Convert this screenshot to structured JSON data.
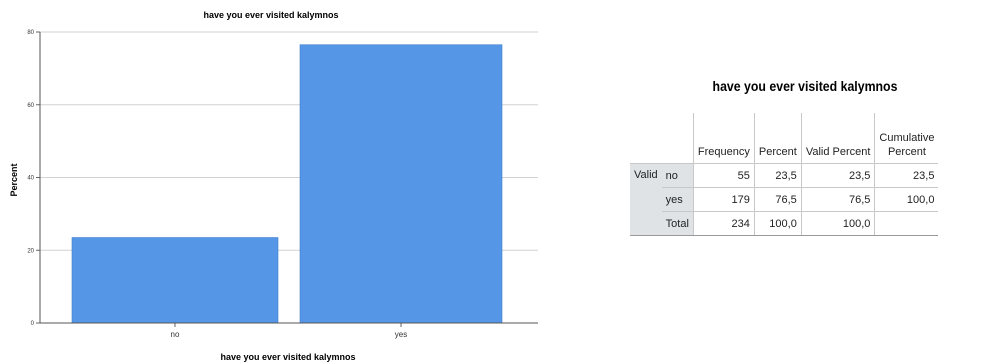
{
  "chart_data": {
    "type": "bar",
    "title": "have you ever visited kalymnos",
    "xlabel": "have you ever visited kalymnos",
    "ylabel": "Percent",
    "categories": [
      "no",
      "yes"
    ],
    "values": [
      23.5,
      76.5
    ],
    "ylim": [
      0,
      80
    ],
    "yticks": [
      0,
      20,
      40,
      60,
      80
    ],
    "grid": true,
    "bar_color": "#5596e6"
  },
  "table": {
    "title": "have you ever visited kalymnos",
    "headers": {
      "frequency": "Frequency",
      "percent": "Percent",
      "valid_percent": "Valid Percent",
      "cumulative_percent_line1": "Cumulative",
      "cumulative_percent_line2": "Percent"
    },
    "group_label": "Valid",
    "rows": [
      {
        "label": "no",
        "frequency": "55",
        "percent": "23,5",
        "valid_percent": "23,5",
        "cumulative_percent": "23,5"
      },
      {
        "label": "yes",
        "frequency": "179",
        "percent": "76,5",
        "valid_percent": "76,5",
        "cumulative_percent": "100,0"
      },
      {
        "label": "Total",
        "frequency": "234",
        "percent": "100,0",
        "valid_percent": "100,0",
        "cumulative_percent": ""
      }
    ]
  }
}
